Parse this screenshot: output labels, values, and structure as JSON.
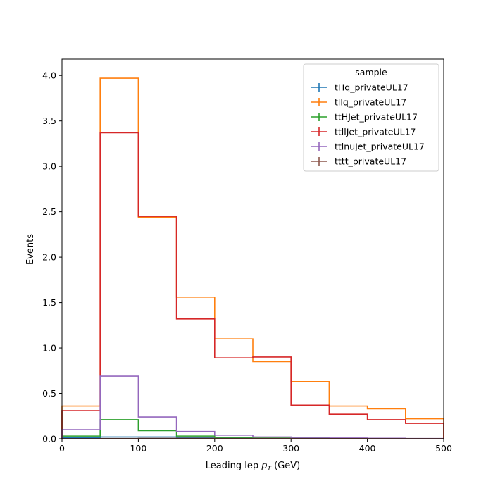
{
  "chart_data": {
    "type": "histogram-step",
    "xlabel": "Leading lep",
    "xlabel_math": "p",
    "xlabel_sub": "T",
    "xlabel_unit": "(GeV)",
    "ylabel": "Events",
    "xlim": [
      0,
      500
    ],
    "ylim": [
      0,
      4.18
    ],
    "xticks": [
      0,
      100,
      200,
      300,
      400,
      500
    ],
    "yticks": [
      0.0,
      0.5,
      1.0,
      1.5,
      2.0,
      2.5,
      3.0,
      3.5,
      4.0
    ],
    "grid": false,
    "legend": {
      "title": "sample",
      "placement": "top-right"
    },
    "bin_edges": [
      0,
      50,
      100,
      150,
      200,
      250,
      300,
      350,
      400,
      450,
      500
    ],
    "series": [
      {
        "name": "tHq_privateUL17",
        "color": "#1f77b4",
        "values": [
          0.01,
          0.02,
          0.02,
          0.015,
          0.01,
          0.005,
          0.003,
          0.002,
          0.001,
          0.001
        ]
      },
      {
        "name": "tllq_privateUL17",
        "color": "#ff7f0e",
        "values": [
          0.36,
          3.97,
          2.44,
          1.56,
          1.1,
          0.85,
          0.63,
          0.36,
          0.33,
          0.22
        ]
      },
      {
        "name": "ttHJet_privateUL17",
        "color": "#2ca02c",
        "values": [
          0.03,
          0.21,
          0.09,
          0.03,
          0.015,
          0.008,
          0.004,
          0.002,
          0.001,
          0.001
        ]
      },
      {
        "name": "ttllJet_privateUL17",
        "color": "#d62728",
        "values": [
          0.31,
          3.37,
          2.45,
          1.32,
          0.89,
          0.9,
          0.37,
          0.27,
          0.21,
          0.17
        ]
      },
      {
        "name": "ttlnuJet_privateUL17",
        "color": "#9467bd",
        "values": [
          0.1,
          0.69,
          0.24,
          0.08,
          0.04,
          0.02,
          0.015,
          0.008,
          0.005,
          0.003
        ]
      },
      {
        "name": "tttt_privateUL17",
        "color": "#8c564b",
        "values": [
          0.001,
          0.003,
          0.004,
          0.004,
          0.003,
          0.003,
          0.002,
          0.002,
          0.001,
          0.001
        ]
      }
    ]
  }
}
